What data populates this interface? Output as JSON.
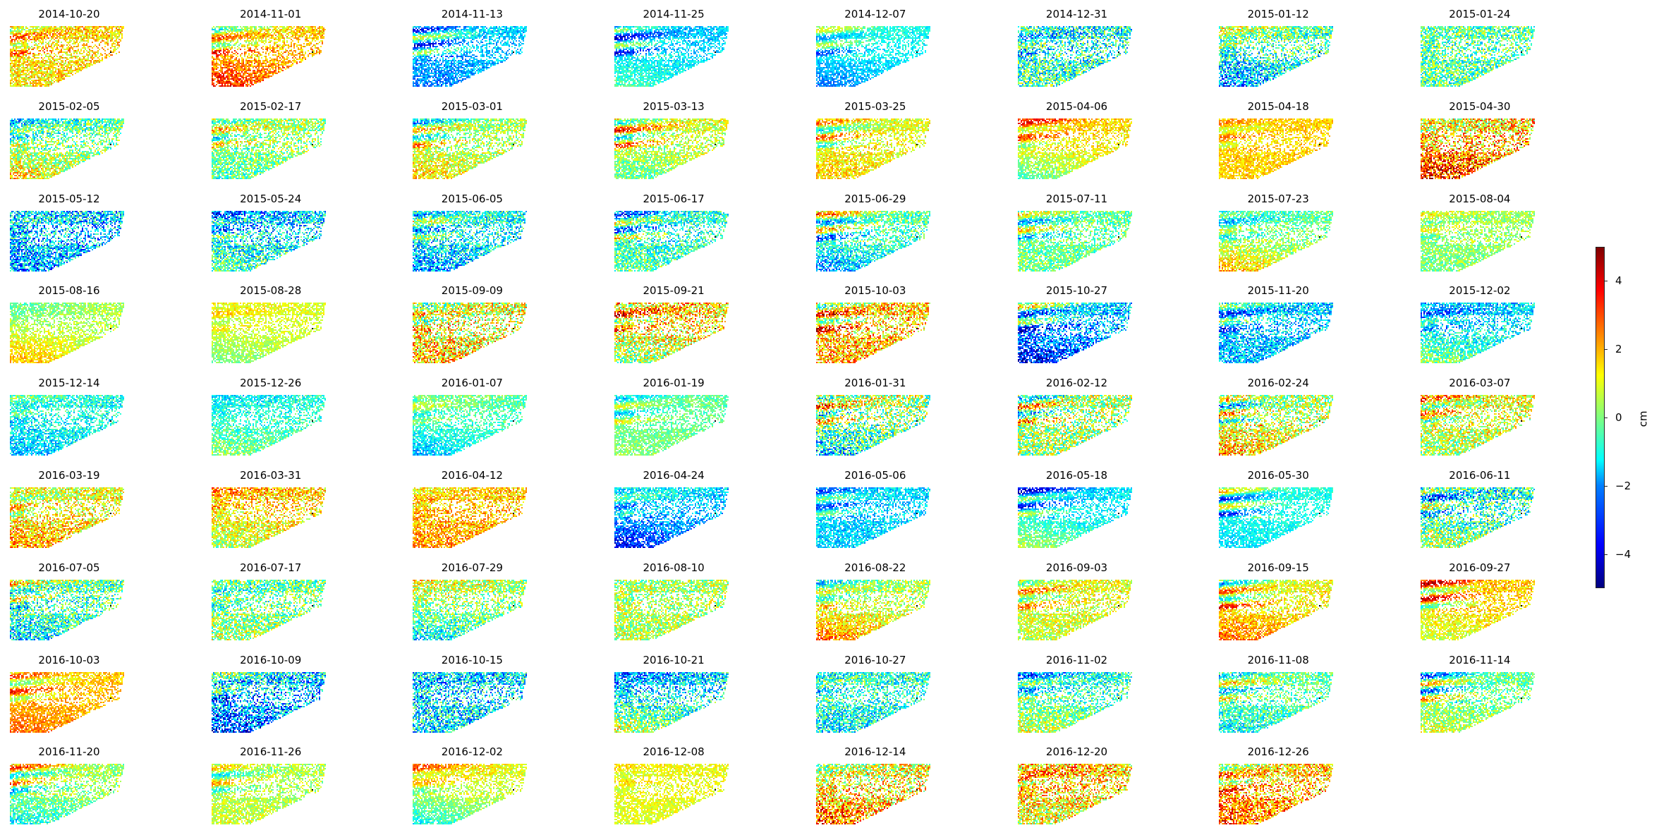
{
  "chart_data": {
    "type": "heatmap",
    "title": "",
    "colormap": "jet",
    "colorbar": {
      "label": "cm",
      "range": [
        -5,
        5
      ],
      "ticks": [
        -4,
        -2,
        0,
        2,
        4
      ],
      "tick_labels": [
        "−4",
        "−2",
        "0",
        "2",
        "4"
      ]
    },
    "grid_columns": 8,
    "panels": [
      "2014-10-20",
      "2014-11-01",
      "2014-11-13",
      "2014-11-25",
      "2014-12-07",
      "2014-12-31",
      "2015-01-12",
      "2015-01-24",
      "2015-02-05",
      "2015-02-17",
      "2015-03-01",
      "2015-03-13",
      "2015-03-25",
      "2015-04-06",
      "2015-04-18",
      "2015-04-30",
      "2015-05-12",
      "2015-05-24",
      "2015-06-05",
      "2015-06-17",
      "2015-06-29",
      "2015-07-11",
      "2015-07-23",
      "2015-08-04",
      "2015-08-16",
      "2015-08-28",
      "2015-09-09",
      "2015-09-21",
      "2015-10-03",
      "2015-10-27",
      "2015-11-20",
      "2015-12-02",
      "2015-12-14",
      "2015-12-26",
      "2016-01-07",
      "2016-01-19",
      "2016-01-31",
      "2016-02-12",
      "2016-02-24",
      "2016-03-07",
      "2016-03-19",
      "2016-03-31",
      "2016-04-12",
      "2016-04-24",
      "2016-05-06",
      "2016-05-18",
      "2016-05-30",
      "2016-06-11",
      "2016-07-05",
      "2016-07-17",
      "2016-07-29",
      "2016-08-10",
      "2016-08-22",
      "2016-09-03",
      "2016-09-15",
      "2016-09-27",
      "2016-10-03",
      "2016-10-09",
      "2016-10-15",
      "2016-10-21",
      "2016-10-27",
      "2016-11-02",
      "2016-11-08",
      "2016-11-14",
      "2016-11-20",
      "2016-11-26",
      "2016-12-02",
      "2016-12-08",
      "2016-12-14",
      "2016-12-20",
      "2016-12-26"
    ]
  }
}
